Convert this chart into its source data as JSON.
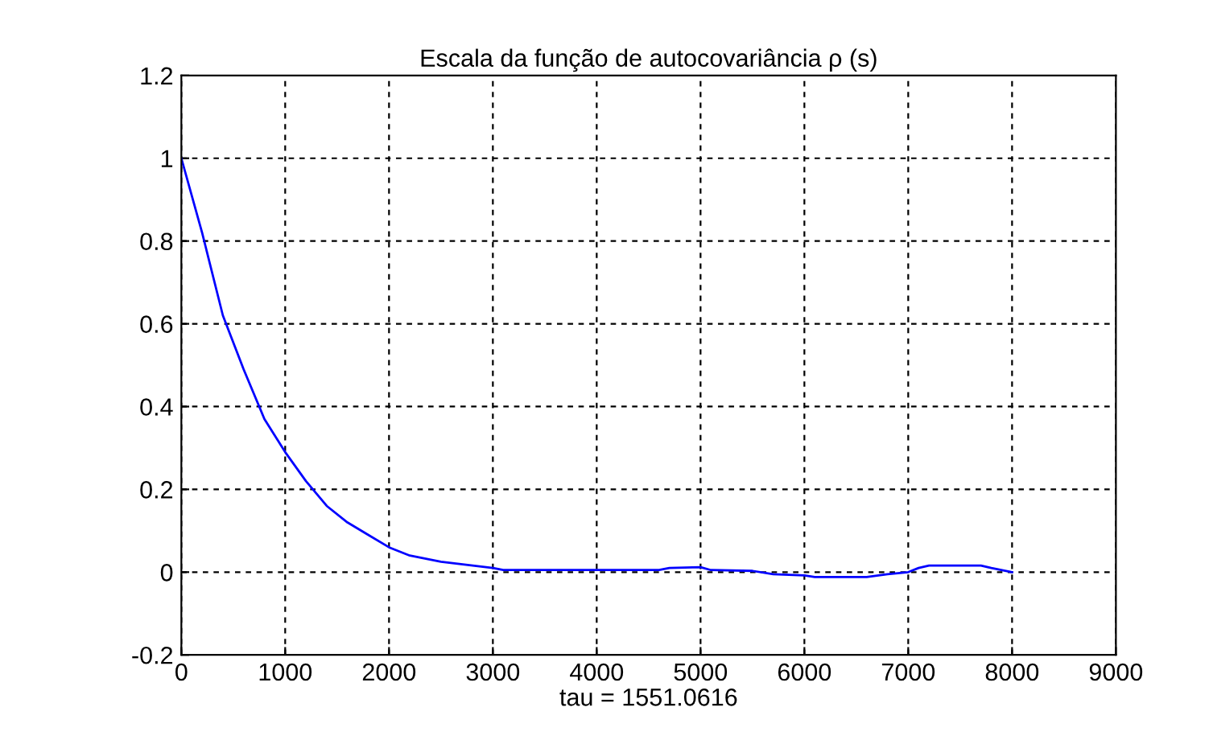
{
  "chart_data": {
    "type": "line",
    "title": "Escala da função de autocovariância ρ (s)",
    "xlabel": "tau = 1551.0616",
    "series": [
      {
        "color": "#0000ff",
        "x": [
          0,
          200,
          400,
          600,
          800,
          1000,
          1200,
          1400,
          1600,
          1800,
          2000,
          2200,
          2500,
          3000,
          3100,
          4000,
          4600,
          4700,
          5000,
          5100,
          5500,
          5700,
          6000,
          6100,
          6600,
          6800,
          7000,
          7100,
          7200,
          7700,
          7800,
          8000
        ],
        "values": [
          1.0,
          0.82,
          0.62,
          0.49,
          0.37,
          0.29,
          0.22,
          0.16,
          0.12,
          0.09,
          0.06,
          0.04,
          0.025,
          0.01,
          0.005,
          0.005,
          0.005,
          0.01,
          0.012,
          0.005,
          0.003,
          -0.005,
          -0.008,
          -0.012,
          -0.012,
          -0.005,
          0.0,
          0.01,
          0.016,
          0.016,
          0.01,
          0.0
        ]
      }
    ],
    "xlim": [
      0,
      9000
    ],
    "xticks": [
      0,
      1000,
      2000,
      3000,
      4000,
      5000,
      6000,
      7000,
      8000,
      9000
    ],
    "ylim": [
      -0.2,
      1.2
    ],
    "yticks": [
      -0.2,
      0,
      0.2,
      0.4,
      0.6,
      0.8,
      1,
      1.2
    ],
    "grid": true,
    "marker": "none",
    "line_style": "solid",
    "legend": false
  }
}
